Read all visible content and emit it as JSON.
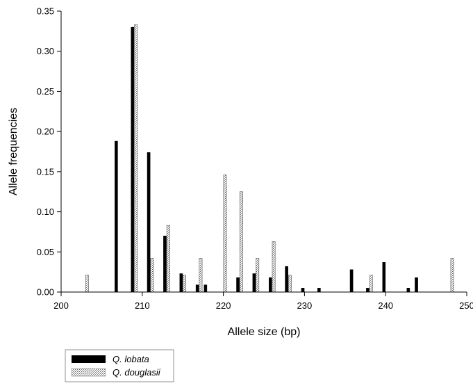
{
  "chart_data": {
    "type": "bar",
    "xlabel": "Allele size (bp)",
    "ylabel": "Allele frequencies",
    "xlim": [
      200,
      250
    ],
    "ylim": [
      0,
      0.35
    ],
    "xticks": [
      "200",
      "210",
      "220",
      "230",
      "240",
      "250"
    ],
    "yticks": [
      "0.00",
      "0.05",
      "0.10",
      "0.15",
      "0.20",
      "0.25",
      "0.30",
      "0.35"
    ],
    "grid": false,
    "legend": {
      "position": "bottom-left, below chart"
    },
    "series": [
      {
        "name": "Q. lobata",
        "color": "#000000",
        "fill": "solid",
        "x": [
          207,
          209,
          211,
          213,
          215,
          217,
          218,
          222,
          224,
          226,
          228,
          230,
          232,
          236,
          238,
          240,
          243,
          244
        ],
        "values": [
          0.188,
          0.33,
          0.174,
          0.07,
          0.023,
          0.009,
          0.009,
          0.018,
          0.023,
          0.018,
          0.032,
          0.005,
          0.005,
          0.028,
          0.005,
          0.037,
          0.005,
          0.018
        ]
      },
      {
        "name": "Q. douglasii",
        "color": "#ffffff",
        "fill": "stippled",
        "x": [
          203,
          209,
          211,
          213,
          215,
          217,
          220,
          222,
          224,
          226,
          228,
          238,
          248
        ],
        "values": [
          0.021,
          0.333,
          0.042,
          0.083,
          0.021,
          0.042,
          0.146,
          0.125,
          0.042,
          0.063,
          0.021,
          0.021,
          0.042
        ]
      }
    ]
  }
}
